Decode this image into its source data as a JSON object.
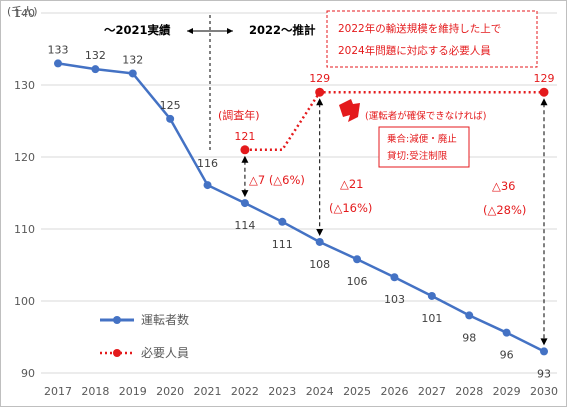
{
  "chart_data": {
    "type": "line",
    "x": [
      "2017",
      "2018",
      "2019",
      "2020",
      "2021",
      "2022",
      "2023",
      "2024",
      "2025",
      "2026",
      "2027",
      "2028",
      "2029",
      "2030"
    ],
    "unit_label": "(千人)",
    "ylim": [
      90,
      140
    ],
    "yticks": [
      90,
      100,
      110,
      120,
      130,
      140
    ],
    "grid": true,
    "legend_position": "bottom-left",
    "series": [
      {
        "name": "運転者数",
        "color": "#4472c4",
        "style": "solid-line-with-dots",
        "values": [
          133,
          132,
          132,
          125,
          116,
          114,
          111,
          108,
          106,
          103,
          101,
          98,
          96,
          93
        ],
        "labels": [
          "133",
          "132",
          "132",
          "125",
          "116",
          "114",
          "111",
          "108",
          "106",
          "103",
          "101",
          "98",
          "96",
          "93"
        ],
        "y_values": [
          133,
          132.2,
          131.6,
          125.3,
          116.1,
          113.6,
          111.0,
          108.2,
          105.8,
          103.3,
          100.7,
          98.0,
          95.6,
          93.0
        ]
      },
      {
        "name": "必要人員",
        "color": "#e41a1c",
        "style": "dotted-line-with-dots",
        "points": [
          {
            "x": "2022",
            "y": 121
          },
          {
            "x": "2023",
            "y": 121
          },
          {
            "x": "2024",
            "y": 129
          },
          {
            "x": "2030",
            "y": 129
          }
        ],
        "labels": [
          {
            "x": "2022",
            "text": "121"
          },
          {
            "x": "2024",
            "text": "129"
          },
          {
            "x": "2030",
            "text": "129"
          }
        ]
      }
    ],
    "annotations": {
      "period_left": "〜2021実績",
      "period_right": "2022〜推計",
      "red_box_line1": "2022年の輸送規模を維持した上で",
      "red_box_line2": "2024年問題に対応する必要人員",
      "survey_year": "(調査年)",
      "if_not_secured": "(運転者が確保できなければ)",
      "impact_line1": "乗合:減便・廃止",
      "impact_line2": "貸切:受注制限",
      "gap_2022": "△7 (△6%)",
      "gap_2024_num": "△21",
      "gap_2024_pct": "(△16%)",
      "gap_2030_num": "△36",
      "gap_2030_pct": "(△28%)"
    }
  }
}
